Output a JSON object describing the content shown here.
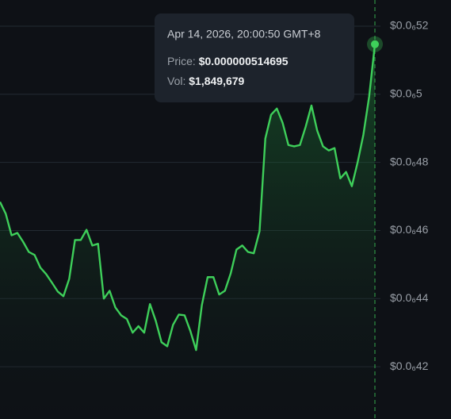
{
  "chart_data": {
    "type": "line",
    "color": "#3ecf5a",
    "grid": true,
    "ylim": [
      4.0465e-07,
      5.2768e-07
    ],
    "yticks": [
      {
        "value": 4.2e-07,
        "label": "$0.0₆42"
      },
      {
        "value": 4.4e-07,
        "label": "$0.0₆44"
      },
      {
        "value": 4.6e-07,
        "label": "$0.0₆46"
      },
      {
        "value": 4.8e-07,
        "label": "$0.0₆48"
      },
      {
        "value": 5e-07,
        "label": "$0.0₆5"
      },
      {
        "value": 5.2e-07,
        "label": "$0.0₆52"
      }
    ],
    "values": [
      4.684e-07,
      4.649e-07,
      4.586e-07,
      4.593e-07,
      4.567e-07,
      4.537e-07,
      4.528e-07,
      4.491e-07,
      4.472e-07,
      4.447e-07,
      4.421e-07,
      4.407e-07,
      4.458e-07,
      4.572e-07,
      4.572e-07,
      4.602e-07,
      4.556e-07,
      4.561e-07,
      4.4e-07,
      4.423e-07,
      4.374e-07,
      4.351e-07,
      4.34e-07,
      4.3e-07,
      4.319e-07,
      4.3e-07,
      4.384e-07,
      4.335e-07,
      4.272e-07,
      4.26e-07,
      4.323e-07,
      4.353e-07,
      4.351e-07,
      4.305e-07,
      4.249e-07,
      4.381e-07,
      4.463e-07,
      4.463e-07,
      4.412e-07,
      4.423e-07,
      4.474e-07,
      4.544e-07,
      4.556e-07,
      4.537e-07,
      4.533e-07,
      4.598e-07,
      4.87e-07,
      4.94e-07,
      4.958e-07,
      4.916e-07,
      4.851e-07,
      4.847e-07,
      4.851e-07,
      4.905e-07,
      4.967e-07,
      4.893e-07,
      4.847e-07,
      4.835e-07,
      4.842e-07,
      4.753e-07,
      4.772e-07,
      4.73e-07,
      4.8e-07,
      4.881e-07,
      4.993e-07,
      5.14695e-07
    ],
    "tooltip": {
      "title": "Apr 14, 2026, 20:00:50 GMT+8",
      "price_label": "Price: ",
      "price": "$0.000000514695",
      "vol_label": "Vol: ",
      "vol": "$1,849,679"
    }
  }
}
